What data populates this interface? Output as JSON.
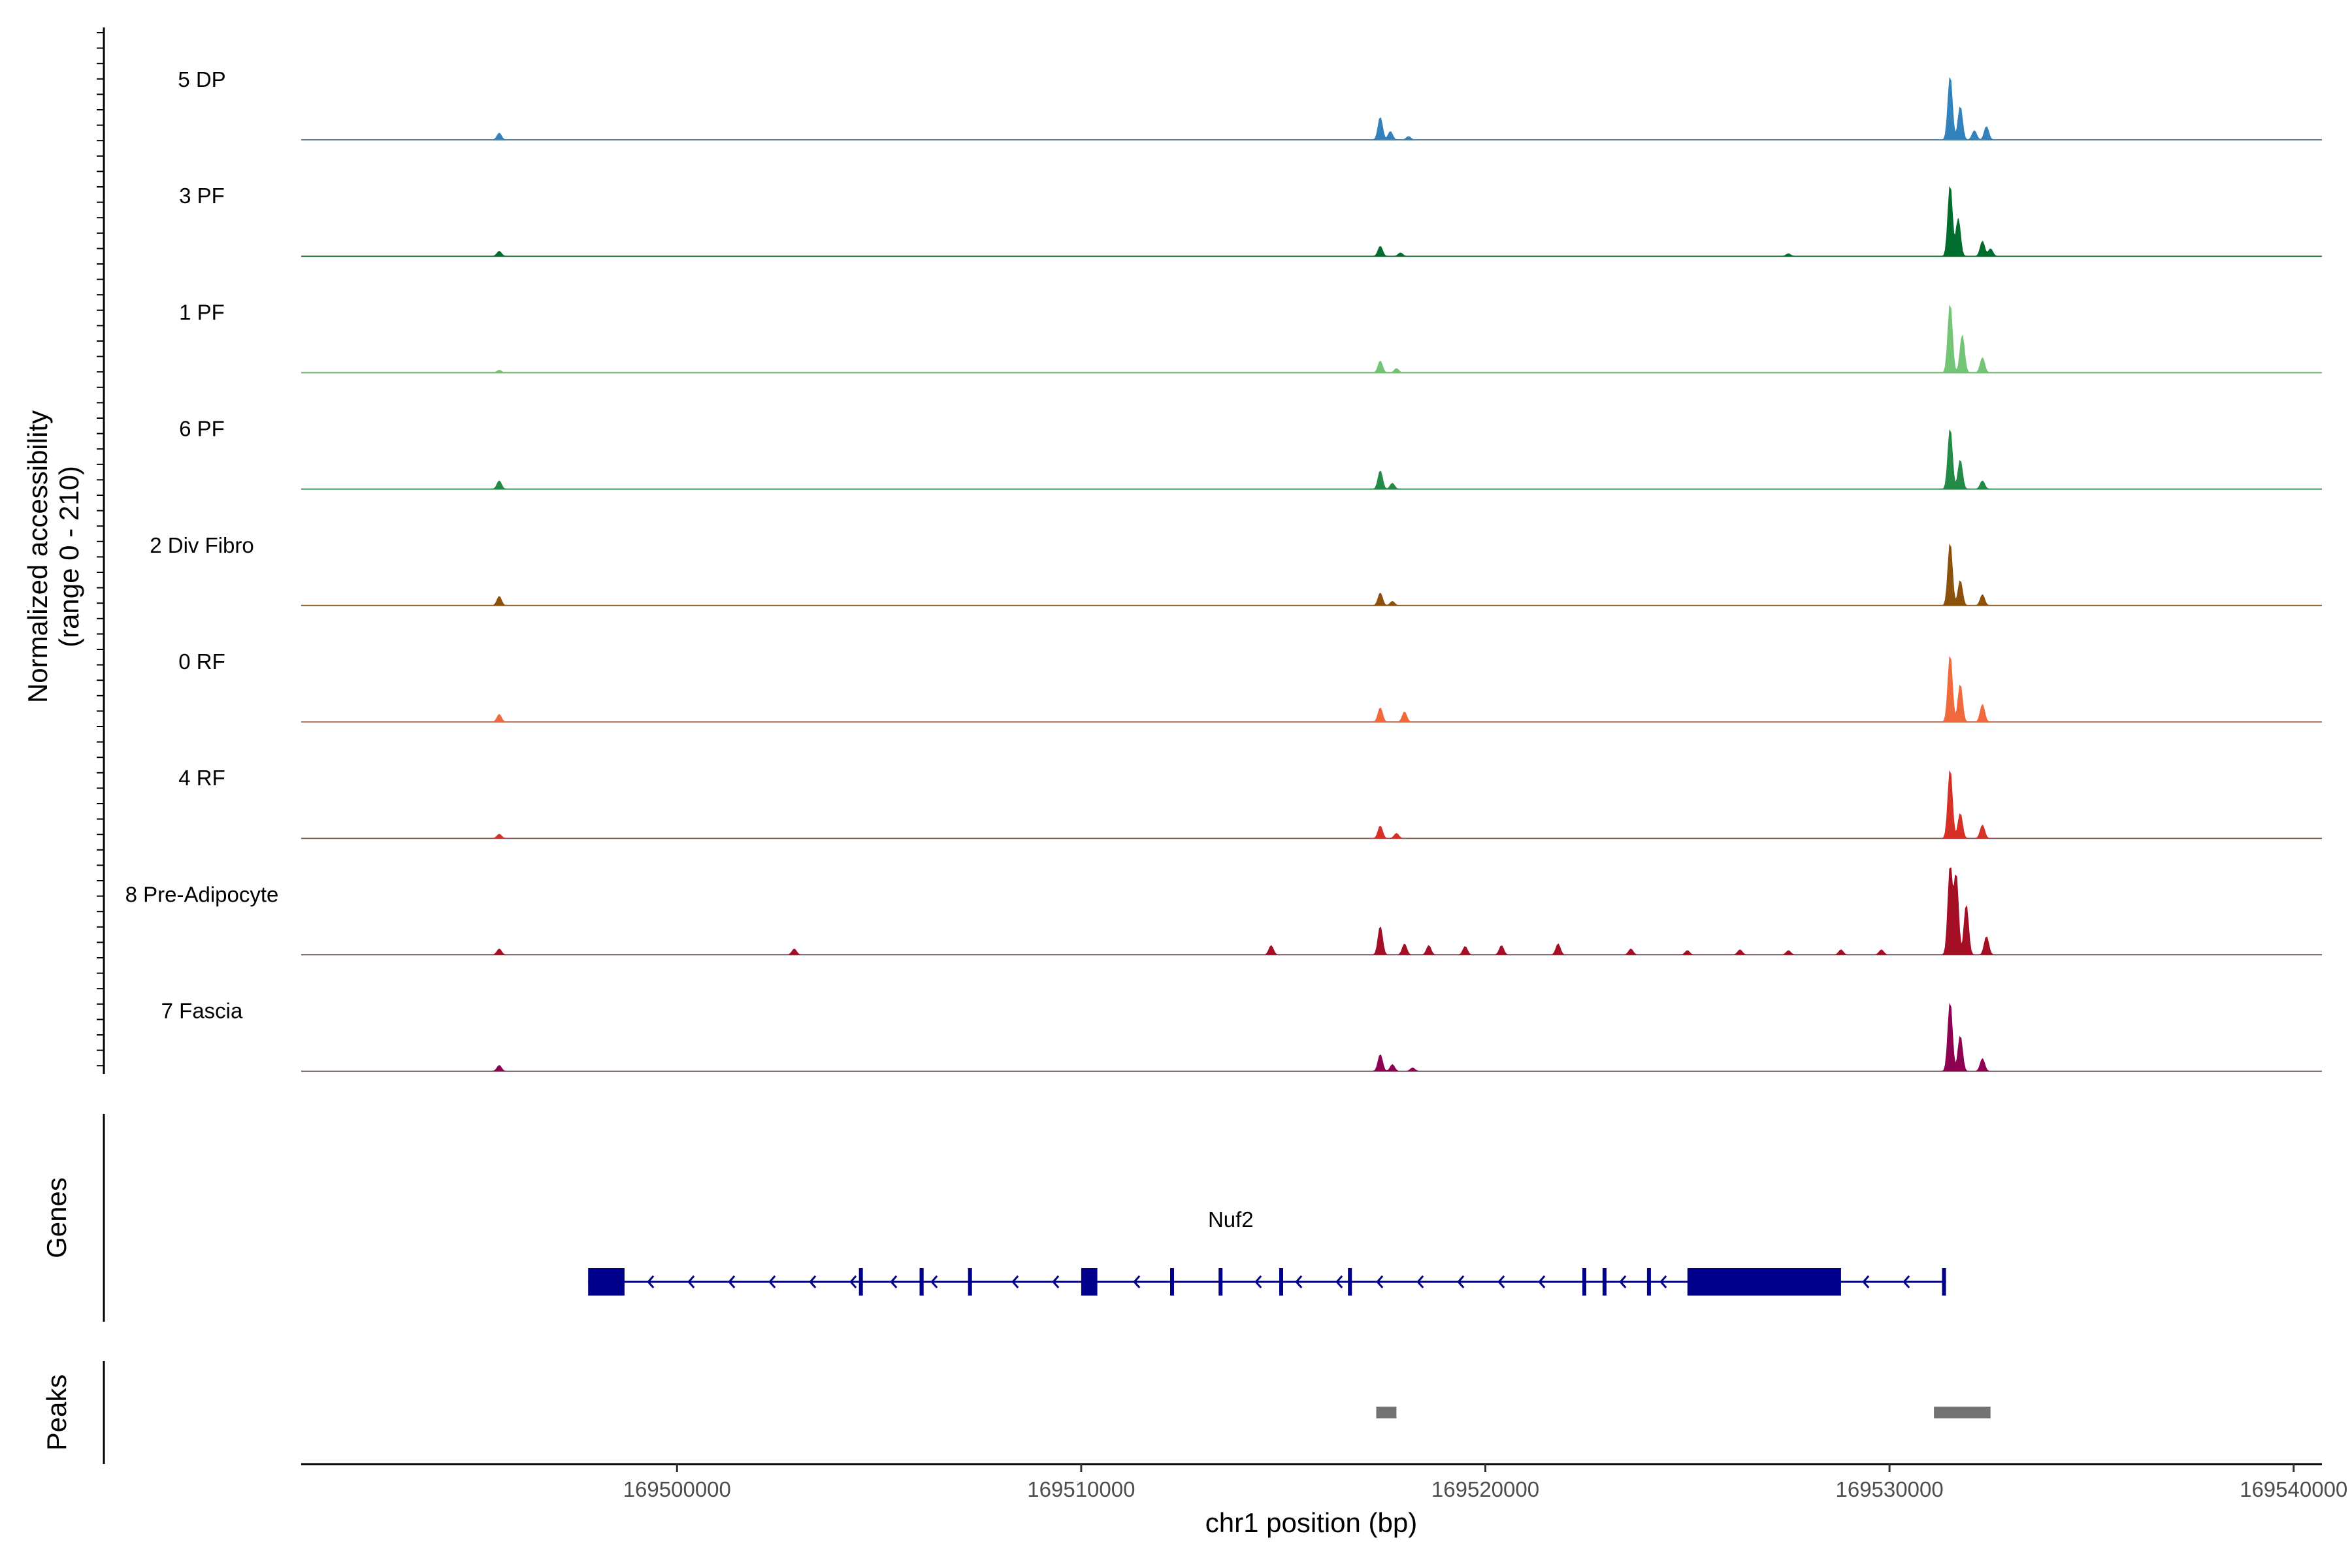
{
  "chart_data": {
    "type": "area",
    "title": "",
    "region": {
      "chrom": "chr1",
      "start": 169490700,
      "end": 169540700
    },
    "coverage": {
      "ylabel": "Normalized accessibility",
      "ylabel_range": "(range 0 - 210)",
      "ylim": [
        0,
        210
      ],
      "tracks": [
        {
          "name": "5 DP",
          "color": "#3182bd",
          "peaks": [
            [
              169495600,
              16
            ],
            [
              169517400,
              54
            ],
            [
              169517650,
              20
            ],
            [
              169518100,
              8
            ],
            [
              169531500,
              152
            ],
            [
              169531750,
              80
            ],
            [
              169532100,
              22
            ],
            [
              169532400,
              32
            ]
          ]
        },
        {
          "name": "3 PF",
          "color": "#006d2c",
          "peaks": [
            [
              169495600,
              12
            ],
            [
              169517400,
              24
            ],
            [
              169517900,
              8
            ],
            [
              169527500,
              6
            ],
            [
              169531500,
              170
            ],
            [
              169531700,
              90
            ],
            [
              169532300,
              36
            ],
            [
              169532500,
              18
            ]
          ]
        },
        {
          "name": "1 PF",
          "color": "#74c476",
          "peaks": [
            [
              169495600,
              6
            ],
            [
              169517400,
              28
            ],
            [
              169517800,
              10
            ],
            [
              169531500,
              165
            ],
            [
              169531800,
              90
            ],
            [
              169532300,
              36
            ]
          ]
        },
        {
          "name": "6 PF",
          "color": "#238b45",
          "peaks": [
            [
              169495600,
              20
            ],
            [
              169517400,
              44
            ],
            [
              169517700,
              14
            ],
            [
              169531500,
              145
            ],
            [
              169531750,
              70
            ],
            [
              169532300,
              20
            ]
          ]
        },
        {
          "name": "2 Div Fibro",
          "color": "#8c510a",
          "peaks": [
            [
              169495600,
              22
            ],
            [
              169517400,
              30
            ],
            [
              169517700,
              10
            ],
            [
              169531500,
              150
            ],
            [
              169531750,
              60
            ],
            [
              169532300,
              26
            ]
          ]
        },
        {
          "name": "0 RF",
          "color": "#f16a3c",
          "peaks": [
            [
              169495600,
              18
            ],
            [
              169517400,
              34
            ],
            [
              169518000,
              24
            ],
            [
              169531500,
              160
            ],
            [
              169531750,
              90
            ],
            [
              169532300,
              42
            ]
          ]
        },
        {
          "name": "4 RF",
          "color": "#d73027",
          "peaks": [
            [
              169495600,
              10
            ],
            [
              169517400,
              30
            ],
            [
              169517800,
              12
            ],
            [
              169531500,
              165
            ],
            [
              169531750,
              60
            ],
            [
              169532300,
              32
            ]
          ]
        },
        {
          "name": "8 Pre-Adipocyte",
          "color": "#a50f25",
          "peaks": [
            [
              169495600,
              14
            ],
            [
              169502900,
              14
            ],
            [
              169514700,
              22
            ],
            [
              169517400,
              68
            ],
            [
              169518000,
              26
            ],
            [
              169518600,
              22
            ],
            [
              169519500,
              20
            ],
            [
              169520400,
              22
            ],
            [
              169521800,
              26
            ],
            [
              169523600,
              14
            ],
            [
              169525000,
              10
            ],
            [
              169526300,
              12
            ],
            [
              169527500,
              10
            ],
            [
              169528800,
              12
            ],
            [
              169529800,
              12
            ],
            [
              169531500,
              210
            ],
            [
              169531650,
              190
            ],
            [
              169531900,
              120
            ],
            [
              169532400,
              44
            ]
          ]
        },
        {
          "name": "7 Fascia",
          "color": "#8e0152",
          "peaks": [
            [
              169495600,
              14
            ],
            [
              169517400,
              40
            ],
            [
              169517700,
              16
            ],
            [
              169518200,
              8
            ],
            [
              169531500,
              165
            ],
            [
              169531750,
              85
            ],
            [
              169532300,
              30
            ]
          ]
        }
      ]
    },
    "genes": {
      "label": "Genes",
      "items": [
        {
          "name": "Nuf2",
          "strand": "-",
          "start": 169497800,
          "end": 169531400,
          "exons": [
            [
              169497800,
              169498700
            ],
            [
              169504500,
              169504580
            ],
            [
              169506000,
              169506100
            ],
            [
              169507200,
              169507290
            ],
            [
              169510000,
              169510400
            ],
            [
              169512200,
              169512230
            ],
            [
              169513400,
              169513470
            ],
            [
              169514900,
              169514960
            ],
            [
              169516600,
              169516670
            ],
            [
              169522400,
              169522430
            ],
            [
              169522900,
              169522960
            ],
            [
              169524000,
              169524060
            ],
            [
              169525000,
              169528800
            ],
            [
              169531300,
              169531380
            ]
          ]
        }
      ]
    },
    "peaks": {
      "label": "Peaks",
      "color": "#737373",
      "regions": [
        [
          169517300,
          169517800
        ],
        [
          169531100,
          169532500
        ]
      ]
    },
    "x_axis": {
      "label": "chr1 position (bp)",
      "ticks": [
        169500000,
        169510000,
        169520000,
        169530000,
        169540000
      ],
      "tick_labels": [
        "169500000",
        "169510000",
        "169520000",
        "169530000",
        "169540000"
      ]
    }
  }
}
